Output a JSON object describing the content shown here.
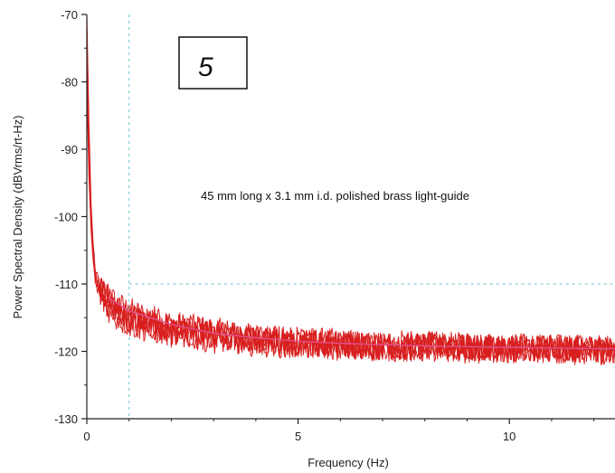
{
  "chart_data": {
    "type": "line",
    "title": "",
    "xlabel": "Frequency (Hz)",
    "ylabel": "Power Spectral Density (dBVrms/rt-Hz)",
    "xlim": [
      0,
      12.5
    ],
    "ylim": [
      -130,
      -70
    ],
    "x_ticks": [
      0,
      5,
      10
    ],
    "y_ticks": [
      -130,
      -120,
      -110,
      -100,
      -90,
      -80,
      -70
    ],
    "x_tick_labels": [
      "0",
      "5",
      "10"
    ],
    "y_tick_labels": [
      "-130",
      "-120",
      "-110",
      "-100",
      "-90",
      "-80",
      "-70"
    ],
    "annotation": "45 mm long x 3.1 mm i.d. polished brass light-guide",
    "panel_label": "5",
    "reference_lines": {
      "vertical_x": 1,
      "horizontal_y": -110,
      "style": "dashed"
    },
    "grid": false,
    "series_count": 5,
    "colors": {
      "traces": "#d81e1e",
      "average": "#e0508a",
      "reference": "#7fcfd8"
    },
    "series": [
      {
        "x": [
          0,
          0.05,
          0.1,
          0.15,
          0.2,
          0.3,
          0.4,
          0.5,
          0.7,
          1,
          1.5,
          2,
          2.5,
          3,
          3.5,
          4,
          4.5,
          5,
          5.5,
          6,
          6.5,
          7,
          7.5,
          8,
          8.5,
          9,
          9.5,
          10,
          10.5,
          11,
          11.5,
          12,
          12.5
        ],
        "values": [
          -70,
          -86,
          -98,
          -104,
          -108,
          -110.5,
          -111,
          -111.5,
          -113,
          -114,
          -115,
          -116,
          -116.5,
          -117,
          -117.5,
          -118,
          -118.3,
          -118.5,
          -118.5,
          -118.7,
          -118.8,
          -119,
          -119,
          -119,
          -119.2,
          -119.2,
          -119.3,
          -119.3,
          -119.4,
          -119.5,
          -119.5,
          -119.6,
          -119.6
        ]
      },
      {
        "x": [
          0,
          0.05,
          0.1,
          0.15,
          0.2,
          0.3,
          0.4,
          0.5,
          0.7,
          1,
          1.5,
          2,
          2.5,
          3,
          3.5,
          4,
          4.5,
          5,
          5.5,
          6,
          6.5,
          7,
          7.5,
          8,
          8.5,
          9,
          9.5,
          10,
          10.5,
          11,
          11.5,
          12,
          12.5
        ],
        "values": [
          -72,
          -88,
          -99,
          -105,
          -108.5,
          -110,
          -111,
          -112,
          -113.5,
          -114.5,
          -115.5,
          -116.2,
          -116.8,
          -117.3,
          -117.6,
          -118,
          -118.2,
          -118.4,
          -118.6,
          -118.8,
          -118.9,
          -119,
          -119.1,
          -119.1,
          -119.3,
          -119.3,
          -119.4,
          -119.4,
          -119.5,
          -119.6,
          -119.6,
          -119.7,
          -119.7
        ]
      },
      {
        "x": [
          0,
          0.05,
          0.1,
          0.15,
          0.2,
          0.3,
          0.4,
          0.5,
          0.7,
          1,
          1.5,
          2,
          2.5,
          3,
          3.5,
          4,
          4.5,
          5,
          5.5,
          6,
          6.5,
          7,
          7.5,
          8,
          8.5,
          9,
          9.5,
          10,
          10.5,
          11,
          11.5,
          12,
          12.5
        ],
        "values": [
          -75,
          -90,
          -100,
          -105.5,
          -109,
          -110.8,
          -111.5,
          -112.5,
          -114,
          -115,
          -116,
          -116.7,
          -117.2,
          -117.6,
          -118,
          -118.3,
          -118.5,
          -118.7,
          -118.9,
          -119,
          -119.1,
          -119.2,
          -119.3,
          -119.3,
          -119.4,
          -119.5,
          -119.5,
          -119.6,
          -119.6,
          -119.7,
          -119.7,
          -119.8,
          -119.8
        ]
      },
      {
        "x": [
          0,
          0.05,
          0.1,
          0.15,
          0.2,
          0.3,
          0.4,
          0.5,
          0.7,
          1,
          1.5,
          2,
          2.5,
          3,
          3.5,
          4,
          4.5,
          5,
          5.5,
          6,
          6.5,
          7,
          7.5,
          8,
          8.5,
          9,
          9.5,
          10,
          10.5,
          11,
          11.5,
          12,
          12.5
        ],
        "values": [
          -78,
          -92,
          -101,
          -106,
          -109.5,
          -111.2,
          -112,
          -113,
          -114.5,
          -115.5,
          -116.3,
          -117,
          -117.5,
          -117.9,
          -118.2,
          -118.5,
          -118.7,
          -118.9,
          -119,
          -119.1,
          -119.2,
          -119.3,
          -119.4,
          -119.4,
          -119.5,
          -119.6,
          -119.6,
          -119.7,
          -119.7,
          -119.8,
          -119.8,
          -119.9,
          -119.9
        ]
      },
      {
        "x": [
          0,
          0.05,
          0.1,
          0.15,
          0.2,
          0.3,
          0.4,
          0.5,
          0.7,
          1,
          1.5,
          2,
          2.5,
          3,
          3.5,
          4,
          4.5,
          5,
          5.5,
          6,
          6.5,
          7,
          7.5,
          8,
          8.5,
          9,
          9.5,
          10,
          10.5,
          11,
          11.5,
          12,
          12.5
        ],
        "values": [
          -81,
          -94,
          -102,
          -106.5,
          -110,
          -111.5,
          -112.5,
          -113.5,
          -115,
          -116,
          -116.8,
          -117.4,
          -117.8,
          -118.2,
          -118.5,
          -118.7,
          -118.9,
          -119.1,
          -119.2,
          -119.3,
          -119.4,
          -119.5,
          -119.5,
          -119.6,
          -119.6,
          -119.7,
          -119.7,
          -119.8,
          -119.8,
          -119.9,
          -119.9,
          -120,
          -120
        ]
      }
    ],
    "average": {
      "x": [
        0.5,
        1,
        2,
        3,
        4,
        5,
        6,
        7,
        8,
        9,
        10,
        11,
        12,
        12.5
      ],
      "values": [
        -112,
        -114,
        -116,
        -117.3,
        -118,
        -118.5,
        -118.8,
        -119,
        -119.2,
        -119.3,
        -119.4,
        -119.5,
        -119.6,
        -119.6
      ]
    }
  }
}
